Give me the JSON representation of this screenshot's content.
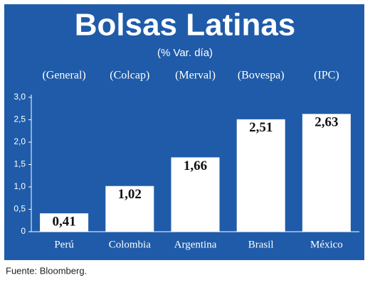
{
  "chart_data": {
    "type": "bar",
    "title": "Bolsas Latinas",
    "subtitle": "(% Var. día)",
    "indices": [
      "(General)",
      "(Colcap)",
      "(Merval)",
      "(Bovespa)",
      "(IPC)"
    ],
    "categories": [
      "Perú",
      "Colombia",
      "Argentina",
      "Brasil",
      "México"
    ],
    "values": [
      0.41,
      1.02,
      1.66,
      2.51,
      2.63
    ],
    "value_labels": [
      "0,41",
      "1,02",
      "1,66",
      "2,51",
      "2,63"
    ],
    "color": "#ffffff",
    "background": "#1f5ba8",
    "ylim": [
      0,
      3
    ],
    "yticks": [
      0,
      {
        "value": 0.5,
        "label": "0,5"
      },
      {
        "value": 1,
        "label": "1,0"
      },
      {
        "value": 1.5,
        "label": "1,5"
      },
      {
        "value": 2,
        "label": "2,0"
      },
      {
        "value": 2.5,
        "label": "2,5"
      },
      {
        "value": 3,
        "label": "3,0"
      }
    ],
    "grid": false,
    "source": "Fuente: Bloomberg."
  }
}
